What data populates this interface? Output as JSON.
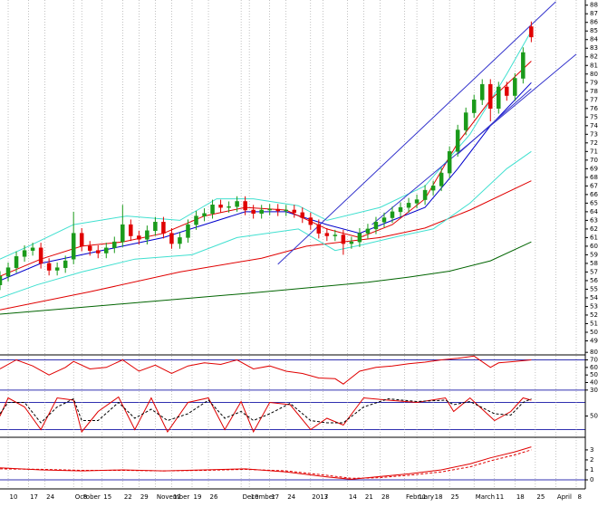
{
  "chart_data": [
    {
      "type": "candlestick",
      "xlim": [
        0,
        143
      ],
      "ylim": [
        48,
        88.6
      ],
      "yticks": [
        49,
        50,
        51,
        52,
        53,
        54,
        55,
        56,
        57,
        58,
        59,
        60,
        61,
        62,
        63,
        64,
        65,
        66,
        67,
        68,
        69,
        70,
        71,
        72,
        73,
        74,
        75,
        76,
        77,
        78,
        79,
        80,
        81,
        82,
        83,
        84,
        85,
        86,
        87,
        88
      ],
      "up_color": "#1a9a1a",
      "down_color": "#e00000",
      "candles": {
        "x": [
          0,
          2,
          4,
          6,
          8,
          10,
          12,
          14,
          16,
          18,
          20,
          22,
          24,
          26,
          28,
          30,
          32,
          34,
          36,
          38,
          40,
          42,
          44,
          46,
          48,
          50,
          52,
          54,
          56,
          58,
          60,
          62,
          64,
          66,
          68,
          70,
          72,
          74,
          76,
          78,
          80,
          82,
          84,
          86,
          88,
          90,
          92,
          94,
          96,
          98,
          100,
          102,
          104,
          106,
          108,
          110,
          112,
          114,
          116,
          118,
          120,
          122,
          124,
          126,
          128,
          130
        ],
        "open": [
          55.5,
          56.5,
          57.5,
          58.8,
          59.5,
          59.8,
          58,
          57.2,
          57.5,
          58.5,
          61.5,
          60,
          59.5,
          59.2,
          59.8,
          60.5,
          62.5,
          61.2,
          60.8,
          61.8,
          62.8,
          61.5,
          60.3,
          61,
          62.5,
          63.5,
          63.8,
          64.8,
          64.5,
          64.6,
          65.2,
          64.2,
          63.8,
          64.2,
          64.3,
          64.1,
          64.2,
          63.9,
          63.3,
          62.5,
          61.5,
          61.2,
          61.3,
          60.3,
          60.5,
          61.5,
          62,
          62.8,
          63.3,
          64,
          64.5,
          65,
          65.4,
          66.5,
          67,
          68.5,
          71,
          73.5,
          75.5,
          77,
          78.8,
          76,
          78.5,
          77.5,
          79.5,
          85.5
        ],
        "high": [
          57.1,
          58.1,
          59.4,
          60.1,
          60.4,
          60.4,
          58.6,
          58.1,
          58.9,
          64,
          62.1,
          60.6,
          60.1,
          60.4,
          61.1,
          64.8,
          63.1,
          61.8,
          62.4,
          63.4,
          63.4,
          62.1,
          61.6,
          63.1,
          64.1,
          64.4,
          65.4,
          65.4,
          65.2,
          65.8,
          65.8,
          64.8,
          64.8,
          64.9,
          64.9,
          64.8,
          64.8,
          64.5,
          63.9,
          63.1,
          62.1,
          61.9,
          61.9,
          61.1,
          62.1,
          62.6,
          63.4,
          63.9,
          64.6,
          65.1,
          65.6,
          66,
          67.1,
          67.6,
          69.1,
          71.6,
          74.1,
          76.1,
          77.6,
          79.4,
          79.4,
          79.1,
          79.1,
          80.1,
          83.1,
          86.1
        ],
        "low": [
          54.9,
          55.9,
          56.9,
          58.2,
          58.9,
          57.4,
          56.6,
          56.6,
          56.9,
          57.9,
          59.4,
          58.9,
          58.6,
          58.6,
          59.2,
          59.9,
          60.6,
          60.2,
          60.2,
          61.2,
          60.9,
          59.7,
          59.7,
          60.4,
          61.9,
          62.9,
          63.2,
          63.9,
          63.9,
          64,
          63.6,
          63.2,
          63.2,
          63.6,
          63.5,
          63.5,
          63.3,
          62.7,
          61.9,
          60.9,
          60.6,
          60.6,
          59,
          59.7,
          59.9,
          60.9,
          61.4,
          62.2,
          62.7,
          63.4,
          63.9,
          64.4,
          64.8,
          65.9,
          66.4,
          67.9,
          70.4,
          72.9,
          74.9,
          76.4,
          74.5,
          75.4,
          76.9,
          76.9,
          78.9,
          83.7
        ],
        "close": [
          56.5,
          57.5,
          58.8,
          59.5,
          59.8,
          58,
          57.2,
          57.5,
          58.3,
          61.5,
          60,
          59.5,
          59.2,
          59.8,
          60.5,
          62.5,
          61.2,
          60.8,
          61.8,
          62.8,
          61.5,
          60.3,
          61,
          62.5,
          63.5,
          63.8,
          64.8,
          64.5,
          64.6,
          65.2,
          64.2,
          63.8,
          64.2,
          64.3,
          64.1,
          64.2,
          63.9,
          63.3,
          62.5,
          61.5,
          61.2,
          61.3,
          60.3,
          60.5,
          61.5,
          62,
          62.8,
          63.3,
          64,
          64.5,
          65,
          65.4,
          66.5,
          67,
          68.5,
          71,
          73.5,
          75.5,
          77,
          78.8,
          76,
          78.5,
          77.5,
          79.5,
          82.5,
          84.3
        ]
      },
      "series": [
        {
          "color": "#006400",
          "x": [
            0,
            30,
            60,
            90,
            100,
            110,
            120,
            130
          ],
          "values": [
            52.1,
            53.3,
            54.5,
            55.8,
            56.4,
            57.1,
            58.3,
            60.5
          ]
        },
        {
          "color": "#e00000",
          "x": [
            0,
            22,
            44,
            64,
            75,
            93,
            104,
            115,
            130
          ],
          "values": [
            52.6,
            54.7,
            57.0,
            58.6,
            60.0,
            61.0,
            62.1,
            64.2,
            67.6
          ]
        },
        {
          "color": "#40e0d0",
          "x": [
            0,
            7,
            18,
            31,
            44,
            53,
            62,
            73,
            80,
            93,
            104,
            115,
            124,
            130
          ],
          "values": [
            58.5,
            60,
            62.5,
            63.5,
            63,
            65.5,
            65.5,
            64.7,
            63,
            64.5,
            67,
            73,
            80,
            85
          ]
        },
        {
          "color": "#40e0d0",
          "x": [
            0,
            9,
            20,
            33,
            47,
            58,
            73,
            82,
            89,
            98,
            106,
            115,
            124,
            130
          ],
          "values": [
            54,
            55.5,
            57,
            58.5,
            59,
            61,
            62,
            59.5,
            60.2,
            61.2,
            62,
            65,
            69,
            71
          ]
        },
        {
          "color": "#0000cc",
          "x": [
            0,
            10,
            20,
            30,
            40,
            50,
            60,
            70,
            80,
            88,
            96,
            104,
            112,
            120,
            130
          ],
          "values": [
            56,
            58,
            59,
            60,
            61,
            62.5,
            64,
            64,
            62.5,
            61.5,
            63,
            64.5,
            69,
            74,
            79
          ]
        },
        {
          "color": "#e00000",
          "x": [
            0,
            10,
            20,
            30,
            40,
            50,
            60,
            70,
            80,
            88,
            96,
            104,
            112,
            120,
            130
          ],
          "values": [
            56.5,
            58.5,
            60,
            60.5,
            61.5,
            63.5,
            64.5,
            64.2,
            62,
            61,
            62.5,
            65.5,
            72,
            77,
            81.5
          ]
        },
        {
          "color": "#3333cc",
          "x": [
            68,
            136
          ],
          "values": [
            57.9,
            88.4
          ]
        },
        {
          "color": "#3333cc",
          "x": [
            91,
            141
          ],
          "values": [
            62.5,
            82.3
          ]
        },
        {
          "color": "#3333cc",
          "x": [
            112,
            130
          ],
          "values": [
            70.7,
            78.3
          ]
        }
      ]
    },
    {
      "type": "line",
      "xlim": [
        0,
        143
      ],
      "ylim": [
        25,
        85
      ],
      "yticks": [
        30,
        40,
        50,
        60,
        70,
        80
      ],
      "levels": [
        70,
        30
      ],
      "level_color": "#3030b0",
      "series": [
        {
          "color": "#e00000",
          "x": [
            0,
            4,
            8,
            12,
            16,
            18,
            22,
            26,
            30,
            34,
            38,
            42,
            46,
            50,
            54,
            58,
            62,
            66,
            70,
            74,
            78,
            82,
            84,
            88,
            92,
            96,
            100,
            104,
            108,
            112,
            116,
            120,
            122,
            126,
            130
          ],
          "values": [
            58,
            70,
            62,
            50,
            60,
            68,
            58,
            60,
            70,
            55,
            63,
            52,
            62,
            66,
            64,
            70,
            58,
            62,
            55,
            52,
            46,
            45,
            38,
            55,
            60,
            62,
            65,
            67,
            70,
            72,
            75,
            60,
            66,
            68,
            70
          ]
        }
      ]
    },
    {
      "type": "line",
      "xlim": [
        0,
        143
      ],
      "ylim": [
        -5,
        105
      ],
      "yticks": [
        50
      ],
      "levels": [
        80,
        20
      ],
      "level_color": "#3030b0",
      "series": [
        {
          "color": "#e00000",
          "x": [
            0,
            2,
            6,
            10,
            14,
            18,
            20,
            24,
            29,
            33,
            37,
            41,
            46,
            51,
            55,
            59,
            62,
            66,
            71,
            76,
            80,
            84,
            89,
            95,
            102,
            109,
            111,
            115,
            121,
            125,
            128,
            130
          ],
          "values": [
            50,
            90,
            70,
            20,
            90,
            85,
            15,
            60,
            92,
            20,
            90,
            15,
            80,
            90,
            20,
            82,
            15,
            80,
            75,
            20,
            45,
            30,
            90,
            85,
            80,
            90,
            60,
            90,
            40,
            60,
            90,
            85
          ]
        },
        {
          "color": "#000000",
          "dash": true,
          "x": [
            0,
            2,
            6,
            10,
            14,
            18,
            20,
            24,
            29,
            33,
            37,
            41,
            46,
            51,
            55,
            59,
            62,
            66,
            71,
            76,
            80,
            84,
            89,
            95,
            102,
            109,
            111,
            115,
            121,
            125,
            128,
            130
          ],
          "values": [
            55,
            80,
            80,
            35,
            70,
            88,
            40,
            40,
            80,
            45,
            65,
            40,
            55,
            85,
            45,
            60,
            40,
            55,
            78,
            40,
            35,
            35,
            70,
            88,
            82,
            85,
            75,
            82,
            55,
            52,
            80,
            88
          ]
        }
      ]
    },
    {
      "type": "line",
      "xlim": [
        0,
        143
      ],
      "ylim": [
        -0.5,
        3.9
      ],
      "yticks": [
        0,
        1,
        2,
        3
      ],
      "levels": [
        0
      ],
      "level_color": "#3030b0",
      "xticks": [
        {
          "value": 2,
          "label": "10"
        },
        {
          "value": 7,
          "label": "17"
        },
        {
          "value": 11,
          "label": "24"
        },
        {
          "value": 18,
          "label": "October"
        },
        {
          "value": 20,
          "label": "8"
        },
        {
          "value": 25,
          "label": "15"
        },
        {
          "value": 30,
          "label": "22"
        },
        {
          "value": 34,
          "label": "29"
        },
        {
          "value": 38,
          "label": "November"
        },
        {
          "value": 42,
          "label": "12"
        },
        {
          "value": 47,
          "label": "19"
        },
        {
          "value": 51,
          "label": "26"
        },
        {
          "value": 59,
          "label": "December"
        },
        {
          "value": 61,
          "label": "10"
        },
        {
          "value": 66,
          "label": "17"
        },
        {
          "value": 70,
          "label": "24"
        },
        {
          "value": 76,
          "label": "2013"
        },
        {
          "value": 79,
          "label": "7"
        },
        {
          "value": 85,
          "label": "14"
        },
        {
          "value": 89,
          "label": "21"
        },
        {
          "value": 93,
          "label": "28"
        },
        {
          "value": 99,
          "label": "February"
        },
        {
          "value": 102,
          "label": "11"
        },
        {
          "value": 106,
          "label": "18"
        },
        {
          "value": 110,
          "label": "25"
        },
        {
          "value": 116,
          "label": "March"
        },
        {
          "value": 121,
          "label": "11"
        },
        {
          "value": 126,
          "label": "18"
        },
        {
          "value": 131,
          "label": "25"
        },
        {
          "value": 136,
          "label": "April"
        },
        {
          "value": 141,
          "label": "8"
        }
      ],
      "series": [
        {
          "color": "#e00000",
          "x": [
            0,
            10,
            20,
            30,
            40,
            50,
            60,
            70,
            80,
            86,
            92,
            100,
            108,
            115,
            120,
            126,
            130
          ],
          "values": [
            1.2,
            1.0,
            0.9,
            1.0,
            0.9,
            1.0,
            1.1,
            0.8,
            0.3,
            0.05,
            0.3,
            0.6,
            1.0,
            1.6,
            2.2,
            2.8,
            3.3
          ]
        },
        {
          "color": "#e00000",
          "dash": true,
          "x": [
            0,
            10,
            20,
            30,
            40,
            50,
            60,
            70,
            80,
            86,
            92,
            100,
            108,
            115,
            120,
            126,
            130
          ],
          "values": [
            1.1,
            1.05,
            0.95,
            0.95,
            0.9,
            0.95,
            1.05,
            0.9,
            0.45,
            0.15,
            0.2,
            0.45,
            0.8,
            1.3,
            1.9,
            2.5,
            3.0
          ]
        }
      ]
    }
  ]
}
